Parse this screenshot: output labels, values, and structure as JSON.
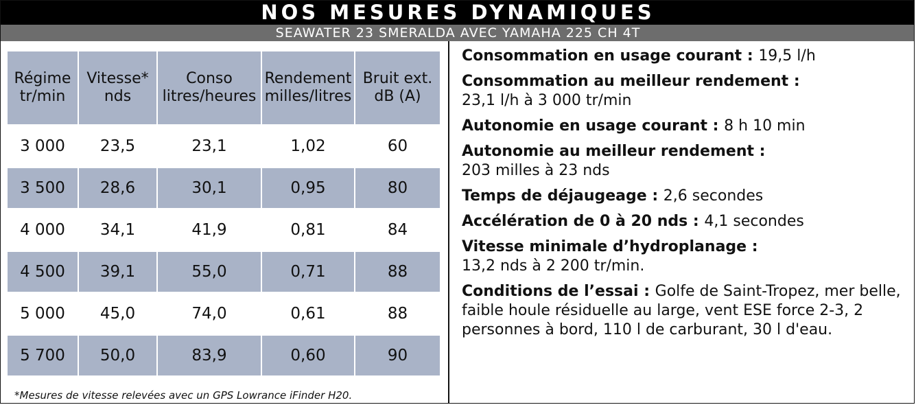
{
  "header": {
    "title": "NOS MESURES DYNAMIQUES",
    "subtitle": "SEAWATER 23 SMERALDA AVEC YAMAHA 225 CH 4T"
  },
  "table": {
    "columns": [
      {
        "line1": "Régime",
        "line2": "tr/min"
      },
      {
        "line1": "Vitesse*",
        "line2": "nds"
      },
      {
        "line1": "Conso",
        "line2": "litres/heures"
      },
      {
        "line1": "Rendement",
        "line2": "milles/litres"
      },
      {
        "line1": "Bruit ext.",
        "line2": "dB (A)"
      }
    ],
    "rows": [
      [
        "3 000",
        "23,5",
        "23,1",
        "1,02",
        "60"
      ],
      [
        "3 500",
        "28,6",
        "30,1",
        "0,95",
        "80"
      ],
      [
        "4 000",
        "34,1",
        "41,9",
        "0,81",
        "84"
      ],
      [
        "4 500",
        "39,1",
        "55,0",
        "0,71",
        "88"
      ],
      [
        "5 000",
        "45,0",
        "74,0",
        "0,61",
        "88"
      ],
      [
        "5 700",
        "50,0",
        "83,9",
        "0,60",
        "90"
      ]
    ],
    "footnote": "*Mesures de vitesse relevées avec un GPS Lowrance iFinder H20."
  },
  "measures": [
    {
      "label": "Consommation en usage courant",
      "sep": " : ",
      "value": "19,5 l/h",
      "block": false
    },
    {
      "label": "Consommation au meilleur rendement",
      "sep": " : ",
      "value": "23,1 l/h à 3 000 tr/min",
      "block": true
    },
    {
      "label": "Autonomie en usage courant",
      "sep": " : ",
      "value": "8 h 10 min",
      "block": false
    },
    {
      "label": "Autonomie au meilleur rendement",
      "sep": " : ",
      "value": "203 milles à 23 nds",
      "block": true
    },
    {
      "label": "Temps de déjaugeage",
      "sep": " : ",
      "value": "2,6 secondes",
      "block": false
    },
    {
      "label": "Accélération de 0 à 20 nds",
      "sep": " : ",
      "value": "4,1 secondes",
      "block": false
    },
    {
      "label": "Vitesse minimale d’hydroplanage",
      "sep": " : ",
      "value": "13,2 nds à 2 200 tr/min.",
      "block": true
    },
    {
      "label": "Conditions de l’essai",
      "sep": " : ",
      "value": "Golfe de Saint-Tropez, mer belle, faible houle résiduelle au large, vent ESE force 2-3, 2 personnes à bord, 110 l de carburant, 30 l d'eau.",
      "block": false
    }
  ],
  "colors": {
    "header_bg": "#000000",
    "subheader_bg": "#6d6d6d",
    "row_shade": "#a9b3c7"
  }
}
